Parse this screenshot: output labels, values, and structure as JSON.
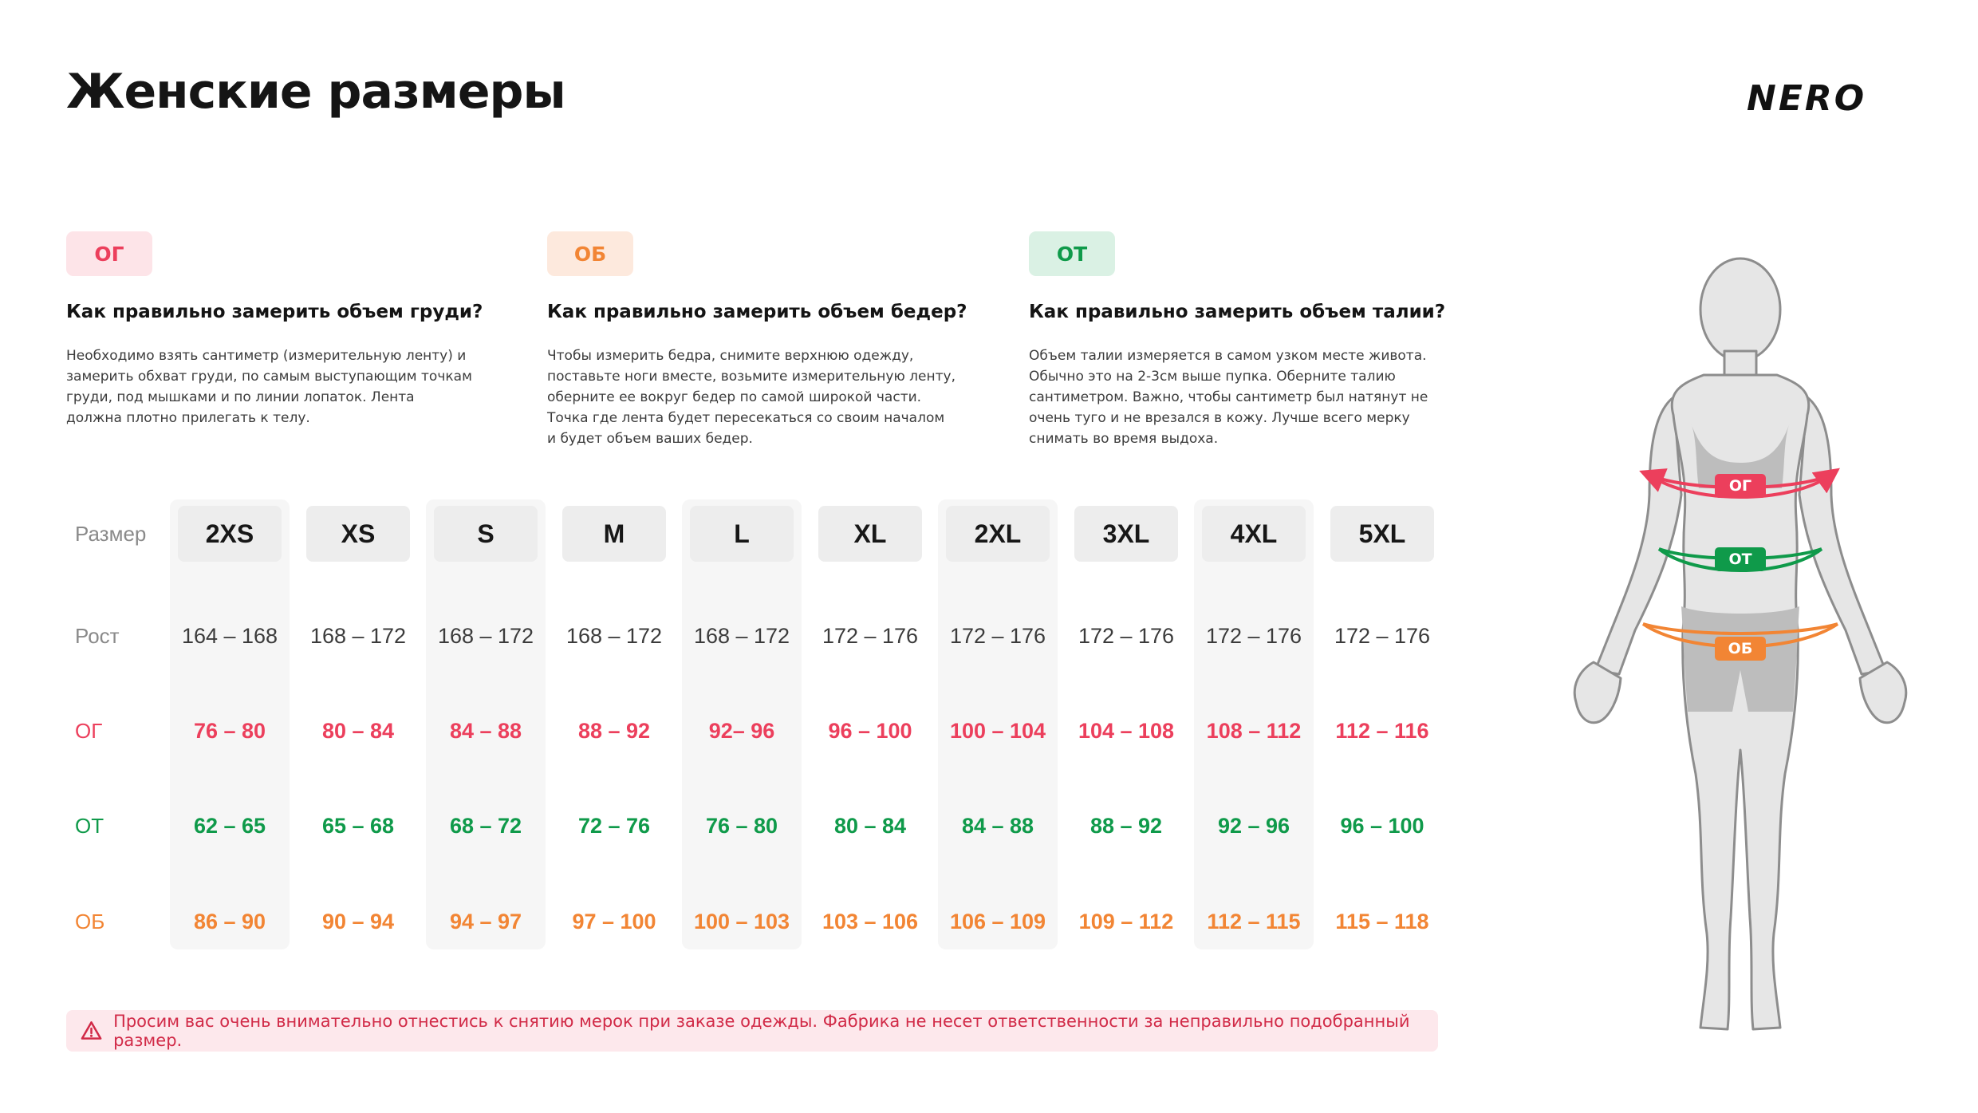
{
  "title": "Женские размеры",
  "brand": {
    "logo_text": "NERO"
  },
  "colors": {
    "og": "#ec3f5c",
    "ot": "#0f9a4a",
    "ob": "#f28534"
  },
  "guides": [
    {
      "badge": "ОГ",
      "heading": "Как правильно замерить объем груди?",
      "text": "Необходимо взять сантиметр (измерительную ленту) и\nзамерить обхват груди, по самым выступающим точкам\nгруди, под мышками и по линии лопаток. Лента\nдолжна плотно прилегать к телу."
    },
    {
      "badge": "ОБ",
      "heading": "Как правильно замерить объем бедер?",
      "text": "Чтобы измерить бедра, снимите верхнюю одежду,\nпоставьте ноги вместе, возьмите измерительную ленту,\nоберните ее вокруг бедер по самой широкой части.\nТочка где лента будет пересекаться со своим началом\nи будет объем ваших бедер."
    },
    {
      "badge": "ОТ",
      "heading": "Как правильно замерить объем талии?",
      "text": "Объем талии измеряется в самом узком месте живота.\nОбычно это на 2-3см выше пупка. Оберните талию\nсантиметром. Важно, чтобы сантиметр был натянут не\nочень туго и не врезался в кожу. Лучше всего мерку\nснимать во время выдоха."
    }
  ],
  "table": {
    "row_labels": {
      "size": "Размер",
      "height": "Рост",
      "og": "ОГ",
      "ot": "ОТ",
      "ob": "ОБ"
    },
    "sizes": [
      "2XS",
      "XS",
      "S",
      "M",
      "L",
      "XL",
      "2XL",
      "3XL",
      "4XL",
      "5XL"
    ],
    "height": [
      "164 – 168",
      "168 – 172",
      "168 – 172",
      "168 – 172",
      "168 – 172",
      "172 – 176",
      "172 – 176",
      "172 – 176",
      "172 – 176",
      "172 – 176"
    ],
    "og": [
      "76 – 80",
      "80 – 84",
      "84 – 88",
      "88 – 92",
      "92– 96",
      "96 – 100",
      "100 – 104",
      "104 – 108",
      "108 – 112",
      "112 – 116"
    ],
    "ot": [
      "62 – 65",
      "65 – 68",
      "68 – 72",
      "72 – 76",
      "76 – 80",
      "80 – 84",
      "84 – 88",
      "88 – 92",
      "92 – 96",
      "96 – 100"
    ],
    "ob": [
      "86 – 90",
      "90 – 94",
      "94 – 97",
      "97 – 100",
      "100 – 103",
      "103 – 106",
      "106 – 109",
      "109 – 112",
      "112 – 115",
      "115 – 118"
    ]
  },
  "warning": {
    "icon": "warning-triangle-icon",
    "text": "Просим вас очень внимательно отнестись к снятию мерок при заказе одежды. Фабрика не несет ответственности за неправильно подобранный размер."
  },
  "figure": {
    "labels": {
      "og": "ОГ",
      "ot": "ОТ",
      "ob": "ОБ"
    }
  }
}
